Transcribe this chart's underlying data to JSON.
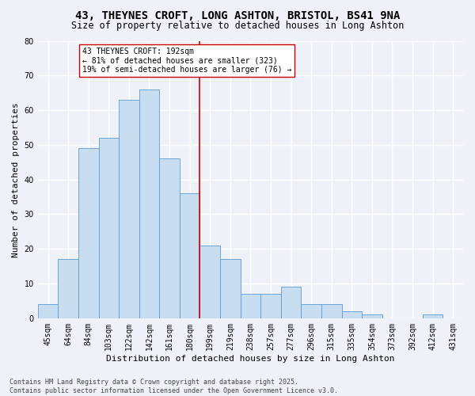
{
  "title": "43, THEYNES CROFT, LONG ASHTON, BRISTOL, BS41 9NA",
  "subtitle": "Size of property relative to detached houses in Long Ashton",
  "xlabel": "Distribution of detached houses by size in Long Ashton",
  "ylabel": "Number of detached properties",
  "categories": [
    "45sqm",
    "64sqm",
    "84sqm",
    "103sqm",
    "122sqm",
    "142sqm",
    "161sqm",
    "180sqm",
    "199sqm",
    "219sqm",
    "238sqm",
    "257sqm",
    "277sqm",
    "296sqm",
    "315sqm",
    "335sqm",
    "354sqm",
    "373sqm",
    "392sqm",
    "412sqm",
    "431sqm"
  ],
  "values": [
    4,
    17,
    49,
    52,
    63,
    66,
    46,
    36,
    21,
    17,
    7,
    7,
    9,
    4,
    4,
    2,
    1,
    0,
    0,
    1,
    0
  ],
  "bar_color": "#c8ddf0",
  "bar_edge_color": "#5b9bd5",
  "ylim": [
    0,
    80
  ],
  "yticks": [
    0,
    10,
    20,
    30,
    40,
    50,
    60,
    70,
    80
  ],
  "property_label": "43 THEYNES CROFT: 192sqm",
  "annotation_line1": "← 81% of detached houses are smaller (323)",
  "annotation_line2": "19% of semi-detached houses are larger (76) →",
  "vline_color": "#cc0000",
  "annotation_box_edge": "#cc0000",
  "vline_x": 7.5,
  "footer1": "Contains HM Land Registry data © Crown copyright and database right 2025.",
  "footer2": "Contains public sector information licensed under the Open Government Licence v3.0.",
  "background_color": "#eef2f8",
  "grid_color": "#ffffff",
  "title_fontsize": 10,
  "subtitle_fontsize": 8.5,
  "axis_label_fontsize": 8,
  "tick_fontsize": 7,
  "annotation_fontsize": 7,
  "footer_fontsize": 6
}
